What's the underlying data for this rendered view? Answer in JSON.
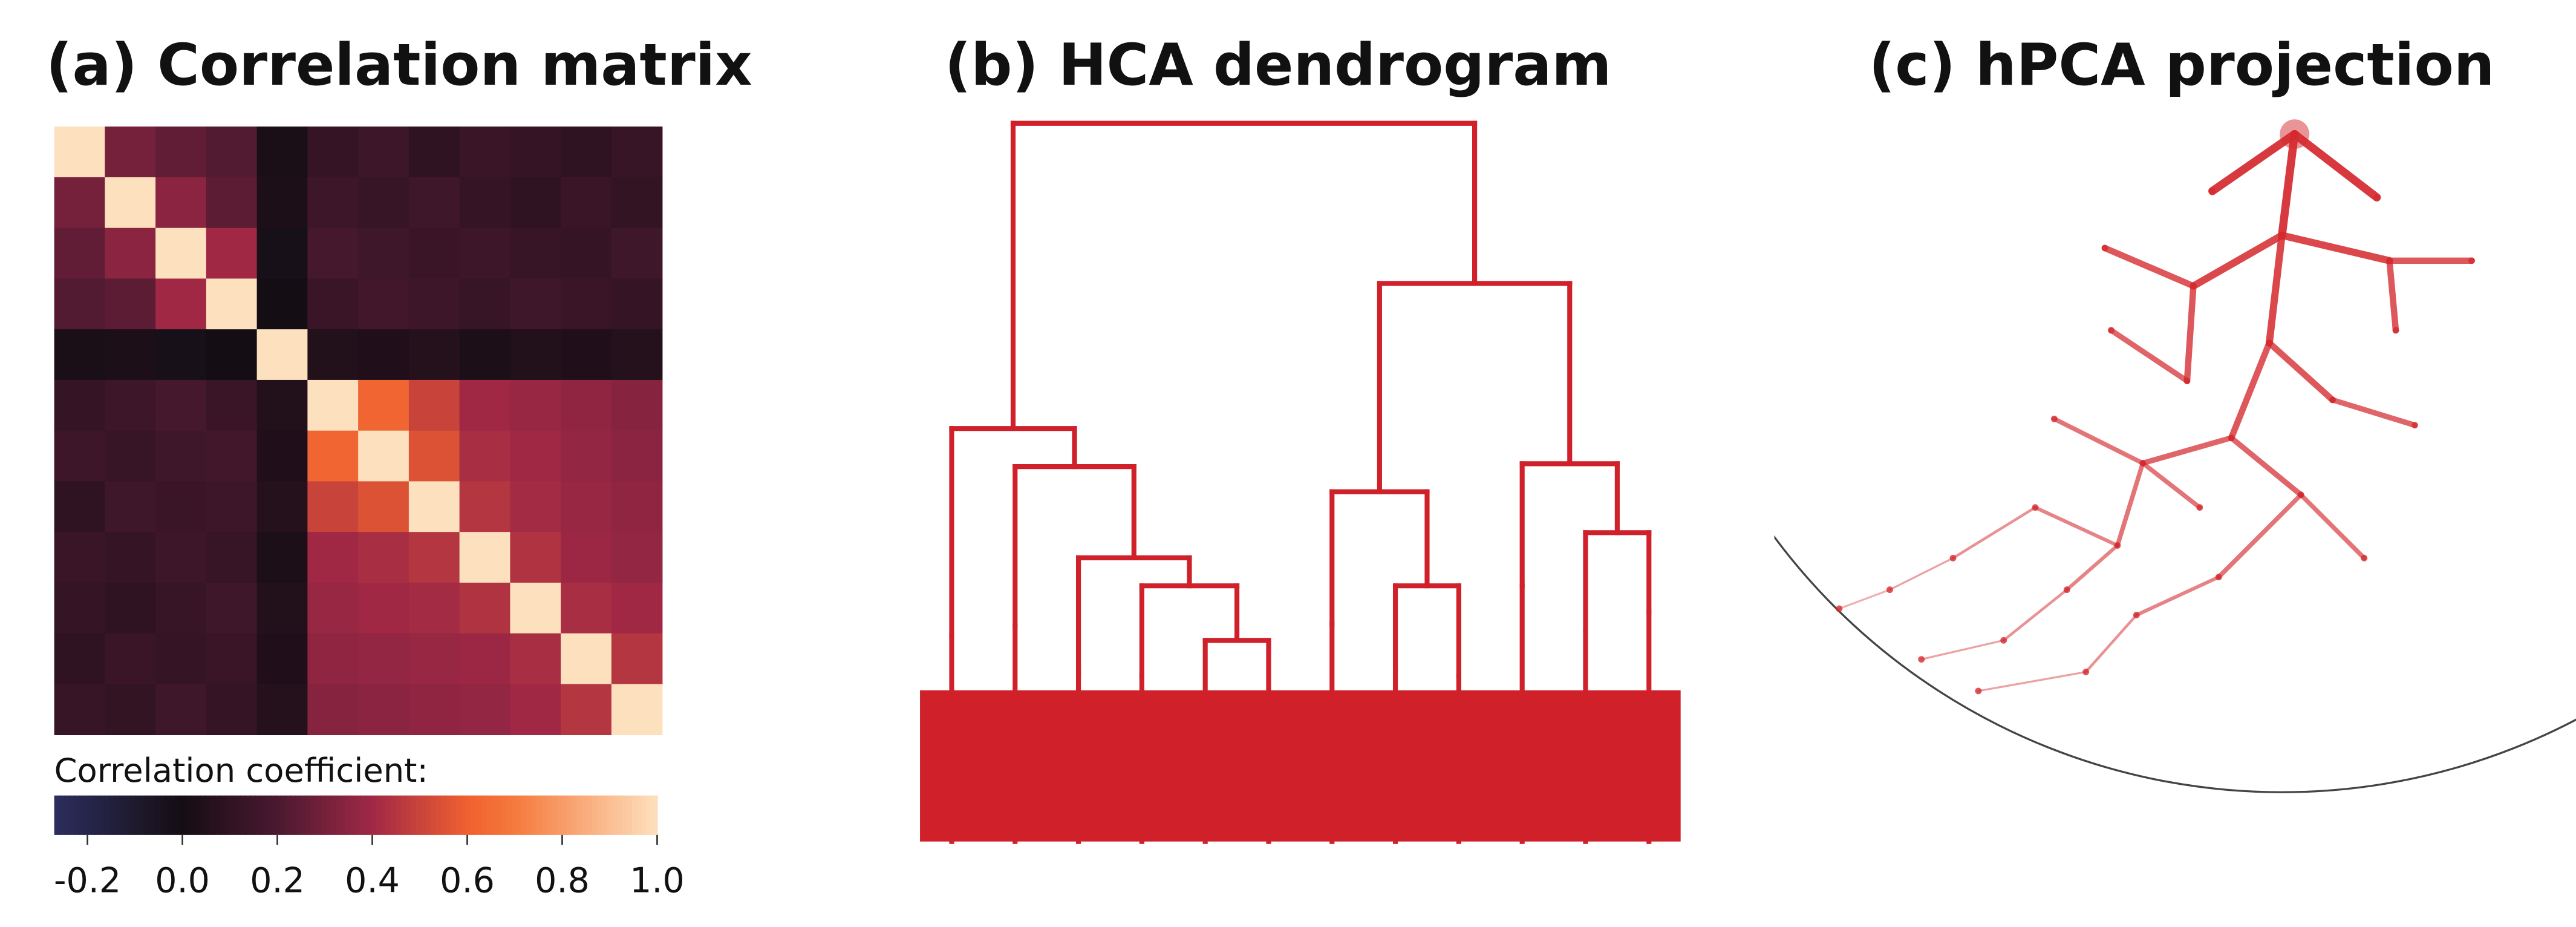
{
  "chart_data": [
    {
      "type": "heatmap",
      "title": "(a) Correlation matrix",
      "colorbar_label": "Correlation coefficient:",
      "clim": [
        -0.27,
        1.0
      ],
      "colorbar_ticks": [
        -0.2,
        {
          "value": 0,
          "label": "0.0"
        },
        0.2,
        0.4,
        0.6,
        0.8,
        {
          "value": 1,
          "label": "1.0"
        }
      ],
      "colorscale": [
        {
          "value": -0.27,
          "color": "#2c2d5e"
        },
        {
          "value": -0.1,
          "color": "#1e1a2e"
        },
        {
          "value": 0,
          "color": "#150d14"
        },
        {
          "value": 0.2,
          "color": "#4a1930"
        },
        {
          "value": 0.4,
          "color": "#a02845"
        },
        {
          "value": 0.6,
          "color": "#f06030"
        },
        {
          "value": 0.7,
          "color": "#f57a3d"
        },
        {
          "value": 1.0,
          "color": "#fde0bd"
        }
      ],
      "matrix": [
        [
          1.0,
          0.3,
          0.25,
          0.22,
          0.02,
          0.12,
          0.15,
          0.1,
          0.14,
          0.12,
          0.1,
          0.13
        ],
        [
          0.3,
          1.0,
          0.35,
          0.24,
          0.03,
          0.15,
          0.13,
          0.16,
          0.12,
          0.1,
          0.14,
          0.11
        ],
        [
          0.25,
          0.35,
          1.0,
          0.4,
          -0.02,
          0.18,
          0.16,
          0.14,
          0.15,
          0.13,
          0.12,
          0.16
        ],
        [
          0.22,
          0.24,
          0.4,
          1.0,
          0.0,
          0.14,
          0.17,
          0.15,
          0.13,
          0.16,
          0.14,
          0.12
        ],
        [
          0.02,
          0.03,
          -0.02,
          0.0,
          1.0,
          0.05,
          0.04,
          0.06,
          0.03,
          0.05,
          0.04,
          0.06
        ],
        [
          0.12,
          0.15,
          0.18,
          0.14,
          0.05,
          1.0,
          0.62,
          0.5,
          0.4,
          0.38,
          0.36,
          0.34
        ],
        [
          0.15,
          0.13,
          0.16,
          0.17,
          0.04,
          0.62,
          1.0,
          0.55,
          0.42,
          0.4,
          0.37,
          0.35
        ],
        [
          0.1,
          0.16,
          0.14,
          0.15,
          0.06,
          0.5,
          0.55,
          1.0,
          0.45,
          0.41,
          0.38,
          0.36
        ],
        [
          0.14,
          0.12,
          0.15,
          0.13,
          0.03,
          0.4,
          0.42,
          0.45,
          1.0,
          0.44,
          0.39,
          0.37
        ],
        [
          0.12,
          0.1,
          0.13,
          0.16,
          0.05,
          0.38,
          0.4,
          0.41,
          0.44,
          1.0,
          0.42,
          0.4
        ],
        [
          0.1,
          0.14,
          0.12,
          0.14,
          0.04,
          0.36,
          0.37,
          0.38,
          0.39,
          0.42,
          1.0,
          0.45
        ],
        [
          0.13,
          0.11,
          0.16,
          0.12,
          0.06,
          0.34,
          0.35,
          0.36,
          0.37,
          0.4,
          0.45,
          1.0
        ]
      ]
    },
    {
      "type": "dendrogram",
      "title": "(b) HCA dendrogram",
      "color": "#d0202a",
      "ylim": [
        0,
        1
      ],
      "root": {
        "height": 1.0,
        "children": [
          {
            "height": 0.575,
            "children": [
              {
                "height": 0.287
              },
              {
                "height": 0.522,
                "children": [
                  {
                    "height": 0.3
                  },
                  {
                    "height": 0.395,
                    "children": [
                      {
                        "height": 0.234
                      },
                      {
                        "height": 0.356,
                        "children": [
                          {
                            "height": 0.23
                          },
                          {
                            "height": 0.28,
                            "children": [
                              {
                                "height": 0.18
                              },
                              {
                                "height": 0.046
                              }
                            ]
                          }
                        ]
                      }
                    ]
                  }
                ]
              }
            ]
          },
          {
            "height": 0.777,
            "children": [
              {
                "height": 0.487,
                "children": [
                  {
                    "height": 0.303
                  },
                  {
                    "height": 0.356,
                    "children": [
                      {
                        "height": 0.24
                      },
                      {
                        "height": 0.23
                      }
                    ]
                  }
                ]
              },
              {
                "height": 0.526,
                "children": [
                  {
                    "height": 0.356
                  },
                  {
                    "height": 0.43,
                    "children": [
                      {
                        "height": 0.294
                      },
                      {
                        "height": 0.32
                      }
                    ]
                  }
                ]
              }
            ]
          }
        ]
      }
    },
    {
      "type": "tree-projection",
      "title": "(c) hPCA projection",
      "color": "#d42a2f",
      "xlim": [
        -1,
        1
      ],
      "ylim": [
        -1,
        1
      ],
      "nodes": [
        {
          "x": 0.02,
          "y": 0.04,
          "parent": null
        },
        {
          "x": 0.0,
          "y": -0.12,
          "parent": 0
        },
        {
          "x": -0.11,
          "y": -0.05,
          "parent": 0
        },
        {
          "x": 0.15,
          "y": -0.06,
          "parent": 0
        },
        {
          "x": -0.02,
          "y": -0.29,
          "parent": 1
        },
        {
          "x": -0.14,
          "y": -0.2,
          "parent": 1
        },
        {
          "x": 0.17,
          "y": -0.16,
          "parent": 1
        },
        {
          "x": 0.3,
          "y": -0.16,
          "parent": 6
        },
        {
          "x": 0.18,
          "y": -0.27,
          "parent": 6
        },
        {
          "x": -0.28,
          "y": -0.14,
          "parent": 5
        },
        {
          "x": -0.15,
          "y": -0.35,
          "parent": 5
        },
        {
          "x": -0.08,
          "y": -0.44,
          "parent": 4
        },
        {
          "x": 0.08,
          "y": -0.38,
          "parent": 4
        },
        {
          "x": 0.21,
          "y": -0.42,
          "parent": 12
        },
        {
          "x": -0.27,
          "y": -0.27,
          "parent": 10
        },
        {
          "x": -0.22,
          "y": -0.48,
          "parent": 11
        },
        {
          "x": 0.03,
          "y": -0.53,
          "parent": 11
        },
        {
          "x": -0.36,
          "y": -0.41,
          "parent": 15
        },
        {
          "x": -0.26,
          "y": -0.61,
          "parent": 15
        },
        {
          "x": -0.13,
          "y": -0.55,
          "parent": 15
        },
        {
          "x": -0.1,
          "y": -0.66,
          "parent": 16
        },
        {
          "x": 0.13,
          "y": -0.63,
          "parent": 16
        },
        {
          "x": -0.39,
          "y": -0.55,
          "parent": 18
        },
        {
          "x": -0.34,
          "y": -0.68,
          "parent": 18
        },
        {
          "x": -0.23,
          "y": -0.72,
          "parent": 20
        },
        {
          "x": -0.52,
          "y": -0.63,
          "parent": 22
        },
        {
          "x": -0.44,
          "y": -0.76,
          "parent": 23
        },
        {
          "x": -0.31,
          "y": -0.81,
          "parent": 24
        },
        {
          "x": -0.62,
          "y": -0.68,
          "parent": 25
        },
        {
          "x": -0.57,
          "y": -0.79,
          "parent": 26
        },
        {
          "x": -0.7,
          "y": -0.71,
          "parent": 28
        },
        {
          "x": -0.48,
          "y": -0.84,
          "parent": 27
        }
      ]
    }
  ]
}
